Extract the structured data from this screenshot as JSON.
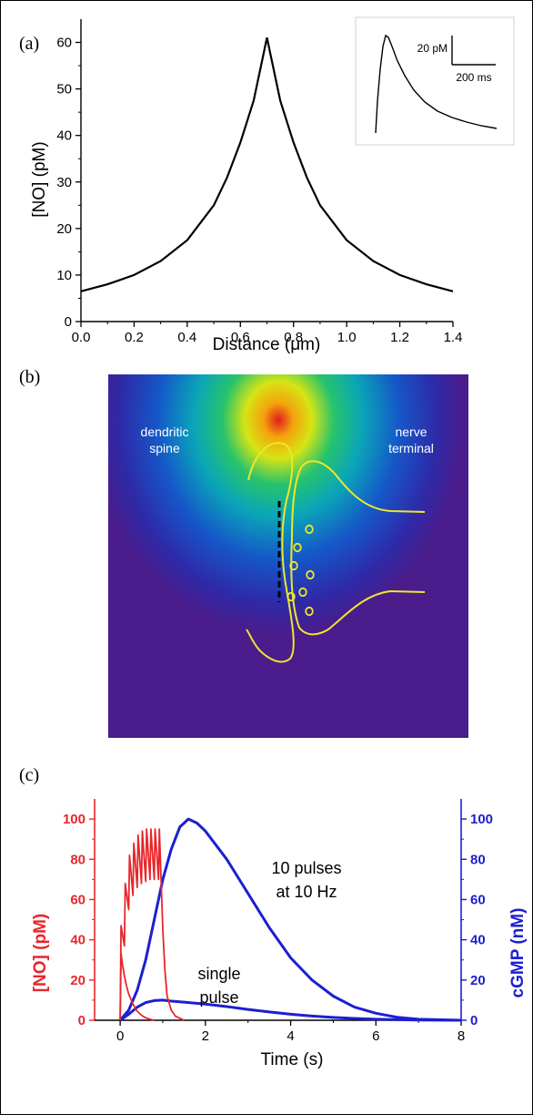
{
  "panels": {
    "a": {
      "label": "(a)"
    },
    "b": {
      "label": "(b)",
      "left_text": [
        "dendritic",
        "spine"
      ],
      "right_text": [
        "nerve",
        "terminal"
      ]
    },
    "c": {
      "label": "(c)",
      "annotation_pulses": [
        "10 pulses",
        "at 10 Hz"
      ],
      "annotation_single": [
        "single",
        "pulse"
      ]
    }
  },
  "colors": {
    "no_curve": "#e8262b",
    "cgmp_curve": "#1c1fd0",
    "membrane": "#f0e62a",
    "field_bg": "#4a1c8c"
  },
  "chart_data": [
    {
      "type": "line",
      "panel": "a",
      "xlabel": "Distance (μm)",
      "ylabel": "[NO] (pM)",
      "xlim": [
        0,
        1.4
      ],
      "ylim": [
        0,
        65
      ],
      "xticks": [
        "0.0",
        "0.2",
        "0.4",
        "0.6",
        "0.8",
        "1.0",
        "1.2",
        "1.4"
      ],
      "yticks": [
        "0",
        "10",
        "20",
        "30",
        "40",
        "50",
        "60"
      ],
      "series": [
        {
          "x": [
            0.0,
            0.1,
            0.2,
            0.3,
            0.4,
            0.5,
            0.55,
            0.6,
            0.65,
            0.7,
            0.75,
            0.8,
            0.85,
            0.9,
            1.0,
            1.1,
            1.2,
            1.3,
            1.4
          ],
          "y": [
            6.5,
            8.0,
            10.0,
            13.0,
            17.5,
            25.0,
            31.0,
            38.5,
            47.5,
            61.0,
            47.5,
            38.5,
            31.0,
            25.0,
            17.5,
            13.0,
            10.0,
            8.0,
            6.5
          ]
        }
      ],
      "inset": {
        "scale_y": "20 pM",
        "scale_x": "200 ms"
      }
    },
    {
      "type": "line",
      "panel": "c",
      "xlabel": "Time (s)",
      "ylabel_left": "[NO] (pM)",
      "ylabel_right": "cGMP (nM)",
      "xlim": [
        -0.6,
        8
      ],
      "ylim": [
        0,
        110
      ],
      "xticks": [
        "0",
        "2",
        "4",
        "6",
        "8"
      ],
      "yticks_left": [
        "0",
        "20",
        "40",
        "60",
        "80",
        "100"
      ],
      "yticks_right": [
        "0",
        "20",
        "40",
        "60",
        "80",
        "100"
      ],
      "series": [
        {
          "name": "NO 10 pulses",
          "axis": "left",
          "x": [
            0.0,
            0.02,
            0.1,
            0.12,
            0.2,
            0.22,
            0.3,
            0.32,
            0.4,
            0.42,
            0.5,
            0.52,
            0.6,
            0.62,
            0.7,
            0.72,
            0.8,
            0.82,
            0.9,
            0.92,
            1.0,
            1.05,
            1.1,
            1.2,
            1.3,
            1.4,
            1.5
          ],
          "y": [
            0,
            47,
            37,
            68,
            55,
            82,
            62,
            88,
            66,
            92,
            68,
            94,
            69,
            95,
            70,
            95,
            70,
            95,
            70,
            95,
            45,
            25,
            12,
            5,
            2,
            1,
            0
          ]
        },
        {
          "name": "NO single pulse",
          "axis": "left",
          "x": [
            0.0,
            0.02,
            0.05,
            0.1,
            0.15,
            0.2,
            0.3,
            0.4,
            0.5,
            0.6,
            0.7,
            0.8
          ],
          "y": [
            0,
            33,
            28,
            22,
            17,
            13,
            8,
            4.5,
            2.5,
            1.2,
            0.5,
            0
          ]
        },
        {
          "name": "cGMP 10 pulses",
          "axis": "right",
          "x": [
            0.0,
            0.2,
            0.4,
            0.6,
            0.8,
            1.0,
            1.2,
            1.4,
            1.6,
            1.8,
            2.0,
            2.5,
            3.0,
            3.5,
            4.0,
            4.5,
            5.0,
            5.5,
            6.0,
            6.5,
            7.0,
            8.0
          ],
          "y": [
            0,
            5,
            15,
            30,
            50,
            70,
            85,
            96,
            100,
            98,
            94,
            80,
            63,
            46,
            31,
            20,
            12,
            6.5,
            3.5,
            1.5,
            0.5,
            0
          ]
        },
        {
          "name": "cGMP single pulse",
          "axis": "right",
          "x": [
            0.0,
            0.2,
            0.4,
            0.6,
            0.8,
            1.0,
            1.2,
            1.5,
            2.0,
            2.5,
            3.0,
            3.5,
            4.0,
            4.5,
            5.0,
            5.5,
            6.0,
            7.0,
            8.0
          ],
          "y": [
            0,
            3,
            6.5,
            8.8,
            9.8,
            10,
            9.5,
            9,
            8,
            6.8,
            5.4,
            4.1,
            3.0,
            2.1,
            1.4,
            0.9,
            0.5,
            0.1,
            0
          ]
        }
      ]
    }
  ]
}
